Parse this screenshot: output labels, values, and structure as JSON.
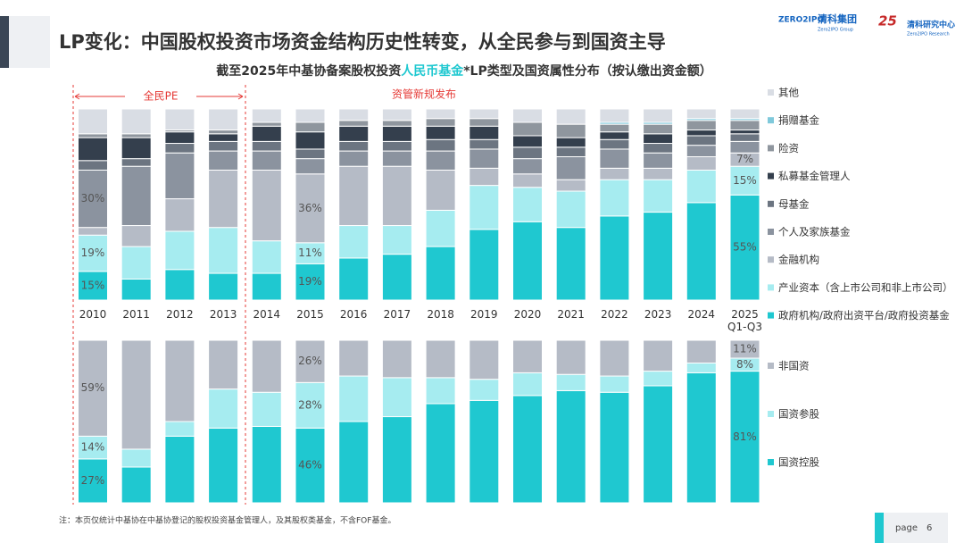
{
  "header": {
    "title": "LP变化：中国股权投资市场资金结构历史性转变，从全民参与到国资主导",
    "brand_1": "ZERO2IPO",
    "brand_2": "清科集团",
    "brand_3": "Zero2IPO Group",
    "brand_4": "25",
    "brand_5": "清科研究中心",
    "brand_6": "Zero2IPO Research"
  },
  "subtitle_parts": [
    "截至2025年中基协备案股权投资",
    "人民币基金",
    "*LP类型及国资属性分布（按认缴出资金额）"
  ],
  "footnote": "注：本页仅统计中基协在中基协登记的股权投资基金管理人，及其股权类基金，不含FOF基金。",
  "page": {
    "label": "page",
    "number": "6"
  },
  "chart_data": [
    {
      "type": "stacked_bar",
      "ylim": [
        0,
        100
      ],
      "categories": [
        "2010",
        "2011",
        "2012",
        "2013",
        "2014",
        "2015",
        "2016",
        "2017",
        "2018",
        "2019",
        "2020",
        "2021",
        "2022",
        "2023",
        "2024",
        "2025\nQ1-Q3"
      ],
      "annotations": [
        {
          "text": "全民PE"
        },
        {
          "text": "资管新规发布"
        }
      ],
      "series": [
        {
          "name": "政府机构/政府出资平台/政府投资基金",
          "color": "#1fc8d0",
          "values": [
            15,
            11,
            16,
            14,
            14,
            19,
            22,
            24,
            28,
            37,
            41,
            38,
            44,
            46,
            51,
            55
          ],
          "value_labels": [
            "15%",
            null,
            null,
            null,
            null,
            "19%",
            null,
            null,
            null,
            null,
            null,
            null,
            null,
            null,
            null,
            "55%"
          ]
        },
        {
          "name": "产业资本（含上市公司和非上市公司）",
          "color": "#a6ecf0",
          "values": [
            19,
            17,
            20,
            24,
            17,
            11,
            17,
            15,
            19,
            23,
            18,
            19,
            19,
            17,
            17,
            15
          ],
          "value_labels": [
            "19%",
            null,
            null,
            null,
            null,
            "11%",
            null,
            null,
            null,
            null,
            null,
            null,
            null,
            null,
            null,
            "15%"
          ]
        },
        {
          "name": "金融机构",
          "color": "#b5bbc6",
          "values": [
            4,
            11,
            17,
            30,
            37,
            36,
            31,
            31,
            21,
            9,
            7,
            6,
            6,
            6,
            7,
            7
          ],
          "value_labels": [
            null,
            null,
            null,
            null,
            null,
            "36%",
            null,
            null,
            null,
            null,
            null,
            null,
            null,
            null,
            null,
            "7%"
          ]
        },
        {
          "name": "个人及家族基金",
          "color": "#8b939f",
          "values": [
            30,
            31,
            24,
            10,
            10,
            8,
            8,
            8,
            10,
            10,
            8,
            12,
            10,
            8,
            6,
            6
          ],
          "value_labels": [
            "30%",
            null,
            null,
            null,
            null,
            null,
            null,
            null,
            null,
            null,
            null,
            null,
            null,
            null,
            null,
            null
          ]
        },
        {
          "name": "母基金",
          "color": "#6c7581",
          "values": [
            5,
            4,
            5,
            5,
            5,
            5,
            5,
            5,
            6,
            5,
            6,
            5,
            5,
            5,
            5,
            4
          ]
        },
        {
          "name": "私募基金管理人",
          "color": "#343f4d",
          "values": [
            12,
            11,
            6,
            4,
            8,
            9,
            8,
            8,
            7,
            7,
            6,
            5,
            4,
            5,
            3,
            2
          ]
        },
        {
          "name": "险资",
          "color": "#8f969e",
          "values": [
            2,
            2,
            1,
            2,
            2,
            5,
            3,
            3,
            4,
            4,
            7,
            7,
            4,
            5,
            5,
            5
          ]
        },
        {
          "name": "捐赠基金",
          "color": "#7fc9db",
          "values": [
            0,
            0,
            0,
            0,
            0,
            0,
            0,
            0,
            0,
            0,
            0,
            0,
            1,
            1,
            1,
            1
          ]
        },
        {
          "name": "其他",
          "color": "#d9dde4",
          "values": [
            13,
            13,
            11,
            11,
            7,
            7,
            6,
            6,
            5,
            5,
            7,
            8,
            7,
            7,
            5,
            5
          ]
        }
      ]
    },
    {
      "type": "stacked_bar",
      "ylim": [
        0,
        100
      ],
      "series": [
        {
          "name": "国资控股",
          "color": "#1fc8d0",
          "values": [
            27,
            22,
            41,
            46,
            47,
            46,
            50,
            53,
            61,
            63,
            66,
            69,
            68,
            72,
            80,
            81
          ],
          "value_labels": [
            "27%",
            null,
            null,
            null,
            null,
            "46%",
            null,
            null,
            null,
            null,
            null,
            null,
            null,
            null,
            null,
            "81%"
          ]
        },
        {
          "name": "国资参股",
          "color": "#a6ecf0",
          "values": [
            14,
            11,
            9,
            24,
            21,
            28,
            28,
            24,
            16,
            13,
            14,
            10,
            10,
            9,
            6,
            8
          ],
          "value_labels": [
            "14%",
            null,
            null,
            null,
            null,
            "28%",
            null,
            null,
            null,
            null,
            null,
            null,
            null,
            null,
            null,
            "8%"
          ]
        },
        {
          "name": "非国资",
          "color": "#b5bbc6",
          "values": [
            59,
            67,
            50,
            30,
            32,
            26,
            22,
            23,
            23,
            24,
            20,
            21,
            22,
            19,
            14,
            11
          ],
          "value_labels": [
            "59%",
            null,
            null,
            null,
            null,
            "26%",
            null,
            null,
            null,
            null,
            null,
            null,
            null,
            null,
            null,
            "11%"
          ]
        }
      ]
    }
  ]
}
